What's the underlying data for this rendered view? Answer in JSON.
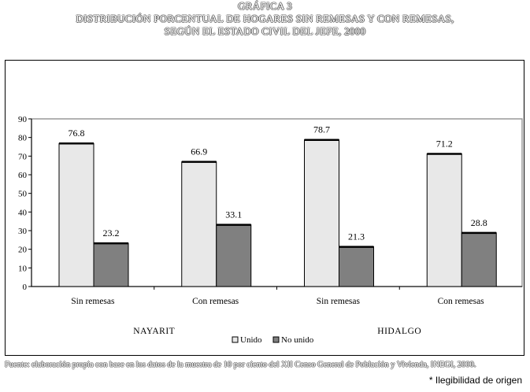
{
  "chart_data": {
    "type": "bar",
    "title_lines": [
      "GRÁFICA 3",
      "DISTRIBUCIÓN PORCENTUAL DE HOGARES SIN REMESAS Y CON REMESAS,",
      "SEGÚN EL ESTADO CIVIL DEL JEFE, 2000"
    ],
    "categories": [
      "Sin remesas",
      "Con remesas",
      "Sin remesas",
      "Con remesas"
    ],
    "groups": [
      {
        "label": "NAYARIT",
        "categories": [
          0,
          1
        ]
      },
      {
        "label": "HIDALGO",
        "categories": [
          2,
          3
        ]
      }
    ],
    "series": [
      {
        "name": "Unido",
        "color": "#e8e8e8",
        "values": [
          76.8,
          66.9,
          78.7,
          71.2
        ],
        "labels": [
          "76.8",
          "66.9",
          "78.7",
          "71.2"
        ]
      },
      {
        "name": "No unido",
        "color": "#808080",
        "values": [
          23.2,
          33.1,
          21.3,
          28.8
        ],
        "labels": [
          "23.2",
          "33.1",
          "21.3",
          "28.8"
        ]
      }
    ],
    "yticks": [
      "0",
      "10",
      "20",
      "30",
      "40",
      "50",
      "60",
      "70",
      "80",
      "90"
    ],
    "ylim": [
      0,
      90
    ],
    "grid": false,
    "legend_position": "bottom-center",
    "source": "Fuente: elaboración propia con base en los datos de la muestra de 10 por ciento del XII Censo General de Población y Vivienda, INEGI, 2000.",
    "note": "* Ilegibilidad de origen"
  }
}
